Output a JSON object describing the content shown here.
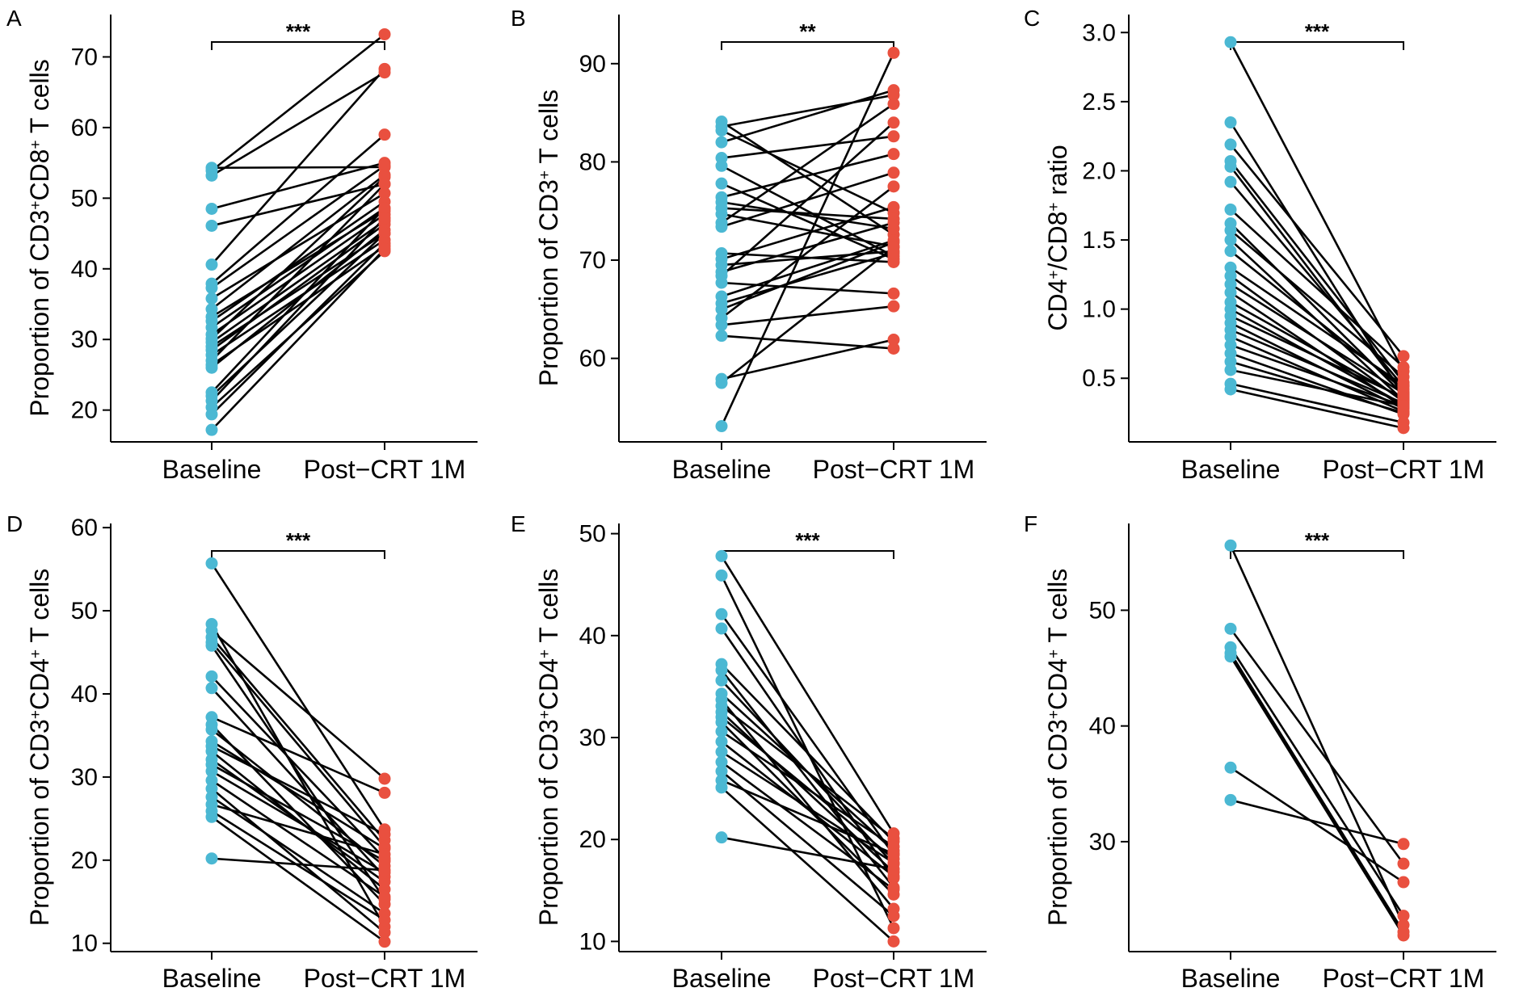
{
  "figure": {
    "categories": [
      "Baseline",
      "Post−CRT 1M"
    ],
    "colors": {
      "baseline": "#4BB8D3",
      "post": "#E9503F",
      "line": "#000000"
    }
  },
  "chart_data": [
    {
      "type": "scatter",
      "panel": "A",
      "ylabel": "Proportion of CD3⁺CD8⁺ T cells",
      "ylabel_parts": [
        [
          "Proportion of CD3",
          ""
        ],
        [
          "+",
          "sup"
        ],
        [
          "CD8",
          ""
        ],
        [
          "+",
          "sup"
        ],
        [
          " T cells",
          ""
        ]
      ],
      "ylim": [
        15.5,
        76
      ],
      "yticks": [
        20,
        30,
        40,
        50,
        60,
        70
      ],
      "significance": "***",
      "pairs": [
        [
          54.3,
          54.4
        ],
        [
          53.9,
          73.2
        ],
        [
          53.2,
          67.8
        ],
        [
          48.5,
          55.0
        ],
        [
          46.1,
          52.0
        ],
        [
          40.6,
          68.3
        ],
        [
          37.9,
          59.0
        ],
        [
          37.3,
          54.6
        ],
        [
          35.8,
          50.7
        ],
        [
          34.3,
          53.3
        ],
        [
          33.2,
          48.2
        ],
        [
          32.6,
          49.5
        ],
        [
          31.7,
          48.6
        ],
        [
          30.7,
          47.7
        ],
        [
          30.1,
          53.0
        ],
        [
          29.6,
          46.8
        ],
        [
          29.0,
          45.0
        ],
        [
          28.5,
          46.3
        ],
        [
          27.8,
          44.1
        ],
        [
          27.0,
          52.0
        ],
        [
          26.4,
          43.2
        ],
        [
          26.0,
          45.5
        ],
        [
          22.5,
          48.6
        ],
        [
          22.0,
          45.0
        ],
        [
          21.3,
          47.2
        ],
        [
          20.4,
          42.5
        ],
        [
          19.4,
          43.6
        ],
        [
          17.2,
          42.8
        ]
      ]
    },
    {
      "type": "scatter",
      "panel": "B",
      "ylabel": "Proportion of CD3⁺ T cells",
      "ylabel_parts": [
        [
          "Proportion of CD3",
          ""
        ],
        [
          "+",
          "sup"
        ],
        [
          " T cells",
          ""
        ]
      ],
      "ylim": [
        51.5,
        95
      ],
      "yticks": [
        60,
        70,
        80,
        90
      ],
      "significance": "**",
      "pairs": [
        [
          84.1,
          72.6
        ],
        [
          83.6,
          86.8
        ],
        [
          83.2,
          74.8
        ],
        [
          82.0,
          87.3
        ],
        [
          80.4,
          82.6
        ],
        [
          79.6,
          70.4
        ],
        [
          77.8,
          70.1
        ],
        [
          76.4,
          80.8
        ],
        [
          75.9,
          73.2
        ],
        [
          75.3,
          74.2
        ],
        [
          74.7,
          71.4
        ],
        [
          73.8,
          85.9
        ],
        [
          73.4,
          78.9
        ],
        [
          70.7,
          69.8
        ],
        [
          70.1,
          75.4
        ],
        [
          69.5,
          70.9
        ],
        [
          68.8,
          73.8
        ],
        [
          68.4,
          84.0
        ],
        [
          67.7,
          66.6
        ],
        [
          66.3,
          72.0
        ],
        [
          65.6,
          70.7
        ],
        [
          65.0,
          71.8
        ],
        [
          64.1,
          77.5
        ],
        [
          63.4,
          65.3
        ],
        [
          62.3,
          61.0
        ],
        [
          57.9,
          61.9
        ],
        [
          57.5,
          71.3
        ],
        [
          53.1,
          91.1
        ]
      ]
    },
    {
      "type": "scatter",
      "panel": "C",
      "ylabel": "CD4⁺/CD8⁺ ratio",
      "ylabel_parts": [
        [
          "CD4",
          ""
        ],
        [
          "+",
          "sup"
        ],
        [
          "/CD8",
          ""
        ],
        [
          "+",
          "sup"
        ],
        [
          " ratio",
          ""
        ]
      ],
      "ylim": [
        0.04,
        3.13
      ],
      "yticks": [
        0.5,
        1.0,
        1.5,
        2.0,
        2.5,
        3.0
      ],
      "significance": "***",
      "pairs": [
        [
          2.93,
          0.55
        ],
        [
          2.35,
          0.37
        ],
        [
          2.19,
          0.66
        ],
        [
          2.07,
          0.47
        ],
        [
          2.03,
          0.4
        ],
        [
          1.92,
          0.44
        ],
        [
          1.72,
          0.58
        ],
        [
          1.62,
          0.38
        ],
        [
          1.57,
          0.51
        ],
        [
          1.5,
          0.34
        ],
        [
          1.42,
          0.42
        ],
        [
          1.3,
          0.45
        ],
        [
          1.24,
          0.33
        ],
        [
          1.18,
          0.39
        ],
        [
          1.12,
          0.29
        ],
        [
          1.05,
          0.35
        ],
        [
          1.0,
          0.31
        ],
        [
          0.95,
          0.36
        ],
        [
          0.9,
          0.28
        ],
        [
          0.85,
          0.32
        ],
        [
          0.8,
          0.26
        ],
        [
          0.74,
          0.3
        ],
        [
          0.68,
          0.24
        ],
        [
          0.62,
          0.25
        ],
        [
          0.56,
          0.3
        ],
        [
          0.46,
          0.18
        ],
        [
          0.42,
          0.14
        ]
      ]
    },
    {
      "type": "scatter",
      "panel": "D",
      "ylabel": "Proportion of CD3⁺CD4⁺ T cells",
      "ylabel_parts": [
        [
          "Proportion of CD3",
          ""
        ],
        [
          "+",
          "sup"
        ],
        [
          "CD4",
          ""
        ],
        [
          "+",
          "sup"
        ],
        [
          " T cells",
          ""
        ]
      ],
      "ylim": [
        9,
        60.5
      ],
      "yticks": [
        10,
        20,
        30,
        40,
        50,
        60
      ],
      "significance": "***",
      "pairs": [
        [
          55.7,
          23.7
        ],
        [
          48.4,
          12.0
        ],
        [
          47.6,
          29.8
        ],
        [
          46.8,
          22.4
        ],
        [
          46.2,
          21.6
        ],
        [
          45.8,
          15.3
        ],
        [
          42.1,
          20.2
        ],
        [
          40.7,
          18.0
        ],
        [
          37.2,
          28.1
        ],
        [
          36.3,
          14.7
        ],
        [
          35.7,
          19.3
        ],
        [
          34.3,
          21.4
        ],
        [
          33.7,
          23.1
        ],
        [
          33.1,
          16.5
        ],
        [
          32.1,
          17.4
        ],
        [
          31.5,
          19.9
        ],
        [
          30.7,
          18.5
        ],
        [
          29.6,
          15.6
        ],
        [
          28.6,
          11.3
        ],
        [
          27.6,
          13.6
        ],
        [
          26.7,
          20.7
        ],
        [
          25.9,
          12.8
        ],
        [
          25.2,
          10.2
        ],
        [
          20.2,
          18.8
        ]
      ]
    },
    {
      "type": "scatter",
      "panel": "E",
      "ylabel": "Proportion of CD3⁺CD4⁺ T cells",
      "ylabel_parts": [
        [
          "Proportion of CD3",
          ""
        ],
        [
          "+",
          "sup"
        ],
        [
          "CD4",
          ""
        ],
        [
          "+",
          "sup"
        ],
        [
          " T cells",
          ""
        ]
      ],
      "ylim": [
        9,
        51
      ],
      "yticks": [
        10,
        20,
        30,
        40,
        50
      ],
      "significance": "***",
      "pairs": [
        [
          47.8,
          20.6
        ],
        [
          45.9,
          11.3
        ],
        [
          42.1,
          18.5
        ],
        [
          40.7,
          16.2
        ],
        [
          37.2,
          19.8
        ],
        [
          36.6,
          15.3
        ],
        [
          35.6,
          17.6
        ],
        [
          34.3,
          18.9
        ],
        [
          33.7,
          13.2
        ],
        [
          33.1,
          20.1
        ],
        [
          32.5,
          16.8
        ],
        [
          32.0,
          18.1
        ],
        [
          31.5,
          14.6
        ],
        [
          30.6,
          19.3
        ],
        [
          29.6,
          16.4
        ],
        [
          28.6,
          17.7
        ],
        [
          27.6,
          15.1
        ],
        [
          26.7,
          12.5
        ],
        [
          25.8,
          18.6
        ],
        [
          25.1,
          10.0
        ],
        [
          20.2,
          17.1
        ]
      ]
    },
    {
      "type": "scatter",
      "panel": "F",
      "ylabel": "Proportion of CD3⁺CD4⁺ T cells",
      "ylabel_parts": [
        [
          "Proportion of CD3",
          ""
        ],
        [
          "+",
          "sup"
        ],
        [
          "CD4",
          ""
        ],
        [
          "+",
          "sup"
        ],
        [
          " T cells",
          ""
        ]
      ],
      "ylim": [
        20.5,
        57.5
      ],
      "yticks": [
        30,
        40,
        50
      ],
      "significance": "***",
      "pairs": [
        [
          55.6,
          22.8
        ],
        [
          48.4,
          28.1
        ],
        [
          46.8,
          23.6
        ],
        [
          46.3,
          22.2
        ],
        [
          46.0,
          21.9
        ],
        [
          36.4,
          26.5
        ],
        [
          33.6,
          29.8
        ]
      ]
    }
  ]
}
